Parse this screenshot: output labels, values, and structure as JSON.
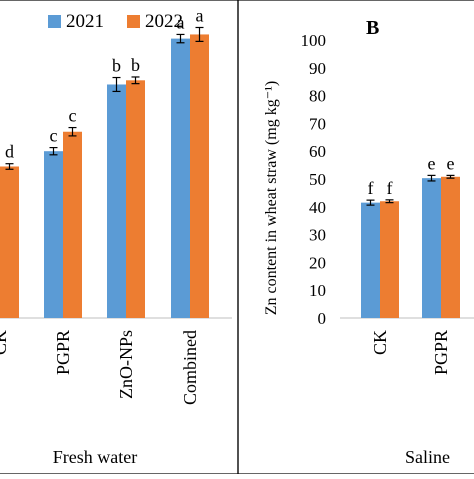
{
  "legend": {
    "items": [
      {
        "label": "2021",
        "color": "#5B9BD5"
      },
      {
        "label": "2022",
        "color": "#ED7D31"
      }
    ]
  },
  "colors": {
    "s2021": "#5B9BD5",
    "s2022": "#ED7D31",
    "error_bar": "#000000",
    "frame": "#000000"
  },
  "chart_data": [
    {
      "type": "bar",
      "panel": "A (cropped)",
      "title": "",
      "group_label": "Fresh water",
      "categories": [
        "CK",
        "PGPR",
        "ZnO-NPs",
        "Combined"
      ],
      "category_labels_shown": [
        "CK",
        "PGPR",
        "ZnO-NPs",
        "Combined"
      ],
      "ylim": [
        0,
        100
      ],
      "series": [
        {
          "name": "2021",
          "values": [
            null,
            60,
            84,
            100.5
          ],
          "errors": [
            null,
            1.3,
            2.5,
            1.5
          ],
          "letters": [
            "",
            "c",
            "b",
            "a"
          ]
        },
        {
          "name": "2022",
          "values": [
            54.5,
            67,
            85.5,
            102
          ],
          "errors": [
            1.0,
            1.5,
            1.2,
            2.5
          ],
          "letters": [
            "d",
            "c",
            "b",
            "a"
          ]
        }
      ]
    },
    {
      "type": "bar",
      "panel": "B",
      "panel_label": "B",
      "ylabel": "Zn content in wheat straw (mg kg⁻¹)",
      "group_label": "Saline",
      "categories": [
        "CK",
        "PGPR"
      ],
      "ylim": [
        0,
        100
      ],
      "yticks": [
        0,
        10,
        20,
        30,
        40,
        50,
        60,
        70,
        80,
        90,
        100
      ],
      "series": [
        {
          "name": "2021",
          "values": [
            41.5,
            50.3
          ],
          "errors": [
            0.9,
            1.0
          ],
          "letters": [
            "f",
            "e"
          ]
        },
        {
          "name": "2022",
          "values": [
            42,
            50.8
          ],
          "errors": [
            0.5,
            0.5
          ],
          "letters": [
            "f",
            "e"
          ]
        }
      ]
    }
  ]
}
